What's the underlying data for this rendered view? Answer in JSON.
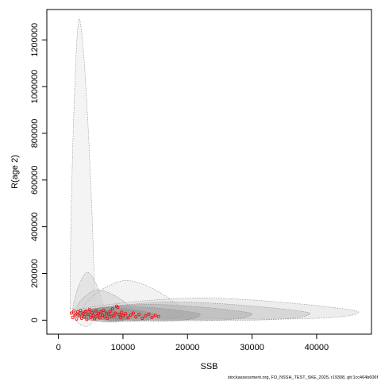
{
  "chart_data": {
    "type": "scatter",
    "xlabel": "SSB",
    "ylabel": "R(age 2)",
    "xlim": [
      -1800,
      48500
    ],
    "ylim": [
      -60000,
      1330000
    ],
    "x_ticks": [
      0,
      10000,
      20000,
      30000,
      40000
    ],
    "y_ticks": [
      0,
      200000,
      400000,
      600000,
      800000,
      1000000,
      1200000
    ],
    "grid": false,
    "confidence_regions": [
      {
        "cx": 3200,
        "cy": 50000,
        "peak_x": 3200,
        "peak_y": 1290000,
        "left_x": 1800,
        "right_x": 5600,
        "fill": "#e6e6e6"
      },
      {
        "cx": 4500,
        "cy": 30000,
        "peak_x": 4500,
        "peak_y": 205000,
        "left_x": 2200,
        "right_x": 7200,
        "fill": "#d0d0d0"
      },
      {
        "cx": 10000,
        "cy": 30000,
        "peak_x": 10500,
        "peak_y": 170000,
        "left_x": 3500,
        "right_x": 19500,
        "fill": "#e2e2e2"
      },
      {
        "cx": 6500,
        "cy": 30000,
        "peak_x": 6000,
        "peak_y": 130000,
        "left_x": 2500,
        "right_x": 12000,
        "fill": "#c8c8c8"
      },
      {
        "cx": 24000,
        "cy": 35000,
        "peak_x": 22000,
        "peak_y": 95000,
        "left_x": 2500,
        "right_x": 46500,
        "fill": "#d6d6d6"
      },
      {
        "cx": 20000,
        "cy": 30000,
        "peak_x": 18000,
        "peak_y": 78000,
        "left_x": 3000,
        "right_x": 39000,
        "fill": "#bdbdbd"
      },
      {
        "cx": 15000,
        "cy": 28000,
        "peak_x": 14000,
        "peak_y": 68000,
        "left_x": 3000,
        "right_x": 30000,
        "fill": "#a8a8a8"
      },
      {
        "cx": 11000,
        "cy": 26000,
        "peak_x": 10000,
        "peak_y": 60000,
        "left_x": 2800,
        "right_x": 22000,
        "fill": "#9a9a9a"
      },
      {
        "cx": 8000,
        "cy": 25000,
        "peak_x": 7500,
        "peak_y": 55000,
        "left_x": 2500,
        "right_x": 15000,
        "fill": "#8c8c8c"
      },
      {
        "cx": 6000,
        "cy": 22000,
        "peak_x": 5500,
        "peak_y": 45000,
        "left_x": 2300,
        "right_x": 11000,
        "fill": "#7a7a7a"
      }
    ],
    "series": [
      {
        "color": "#ff0000",
        "points": [
          [
            2000,
            30000
          ],
          [
            2200,
            12000
          ],
          [
            2400,
            40000
          ],
          [
            2600,
            22000
          ],
          [
            2800,
            5000
          ],
          [
            3000,
            35000
          ],
          [
            3200,
            18000
          ],
          [
            3400,
            42000
          ],
          [
            3600,
            8000
          ],
          [
            3800,
            28000
          ],
          [
            4000,
            15000
          ],
          [
            4200,
            38000
          ],
          [
            4400,
            3000
          ],
          [
            4600,
            25000
          ],
          [
            4800,
            45000
          ],
          [
            5000,
            12000
          ],
          [
            5200,
            32000
          ],
          [
            5400,
            20000
          ],
          [
            5600,
            6000
          ],
          [
            5800,
            40000
          ],
          [
            6000,
            18000
          ],
          [
            6200,
            28000
          ],
          [
            6400,
            10000
          ],
          [
            6600,
            35000
          ],
          [
            6800,
            22000
          ],
          [
            7000,
            42000
          ],
          [
            7200,
            14000
          ],
          [
            7400,
            30000
          ],
          [
            7600,
            8000
          ],
          [
            7800,
            25000
          ],
          [
            8000,
            38000
          ],
          [
            8200,
            16000
          ],
          [
            8400,
            48000
          ],
          [
            8600,
            20000
          ],
          [
            8800,
            30000
          ],
          [
            9000,
            60000
          ],
          [
            9200,
            55000
          ],
          [
            9400,
            24000
          ],
          [
            9600,
            12000
          ],
          [
            9800,
            34000
          ],
          [
            10000,
            18000
          ],
          [
            10400,
            28000
          ],
          [
            10800,
            10000
          ],
          [
            11200,
            22000
          ],
          [
            11600,
            30000
          ],
          [
            12000,
            14000
          ],
          [
            12500,
            24000
          ],
          [
            13000,
            8000
          ],
          [
            13500,
            18000
          ],
          [
            14000,
            26000
          ],
          [
            14500,
            12000
          ],
          [
            15000,
            20000
          ],
          [
            15500,
            16000
          ]
        ]
      }
    ]
  },
  "footer_text": "stockassessment.org, FO_NSSH_TEST_SKE_2025, r19308, git:1cc464b606f"
}
